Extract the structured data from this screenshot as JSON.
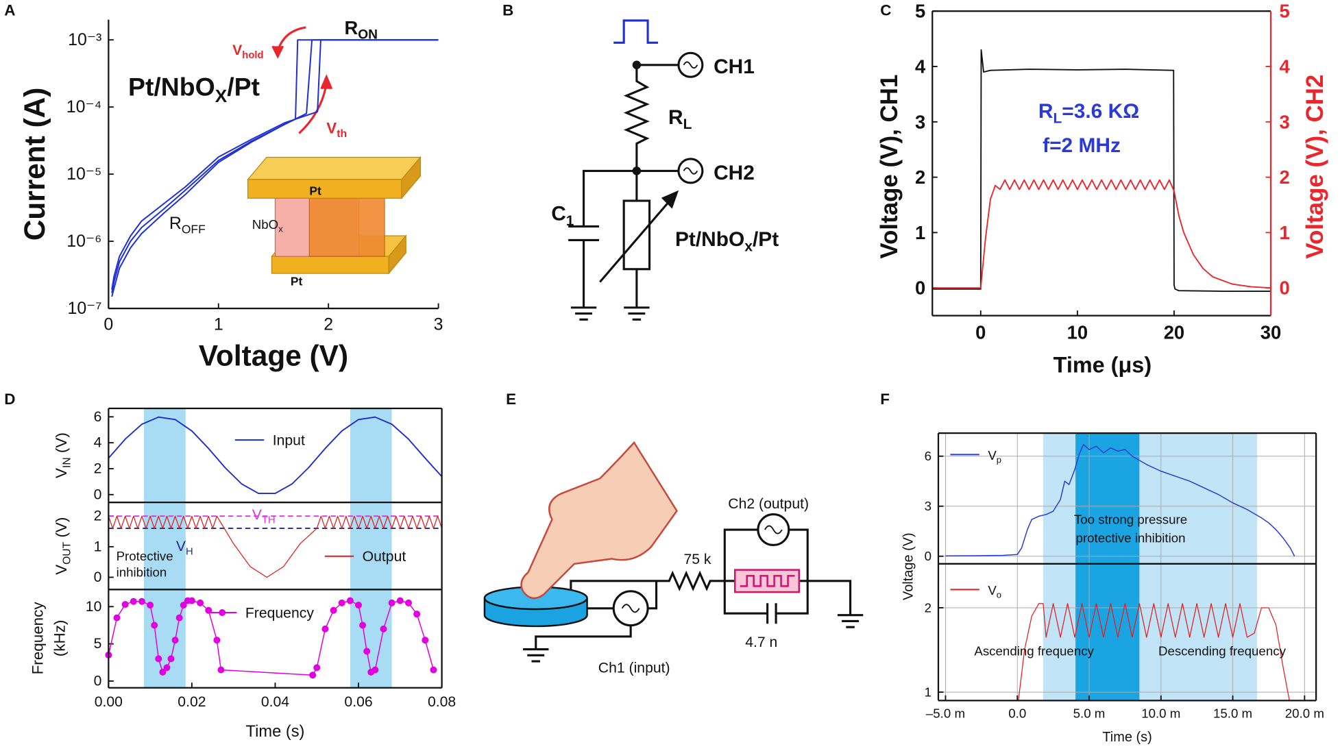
{
  "panel_labels": [
    "A",
    "B",
    "C",
    "D",
    "E",
    "F"
  ],
  "chart_data": [
    {
      "type": "line",
      "log_y": true,
      "xlabel": "Voltage (V)",
      "ylabel": "Current (A)",
      "xlim": [
        0,
        3
      ],
      "xticks": [
        0,
        1,
        2,
        3
      ],
      "ylim": [
        1e-07,
        0.002
      ],
      "yticks": [
        {
          "value": 1e-07,
          "label": "10⁻⁷"
        },
        {
          "value": 1e-06,
          "label": "10⁻⁶"
        },
        {
          "value": 1e-05,
          "label": "10⁻⁵"
        },
        {
          "value": 0.0001,
          "label": "10⁻⁴"
        },
        {
          "value": 0.001,
          "label": "10⁻³"
        }
      ],
      "series": [
        {
          "color": "#1f2fd6",
          "x": [
            0.03,
            0.05,
            0.1,
            0.2,
            0.3,
            0.5,
            0.7,
            1.0,
            1.3,
            1.6,
            1.7,
            1.72,
            3.0
          ],
          "values": [
            1.5e-07,
            2e-07,
            4e-07,
            8e-07,
            1.3e-06,
            2.6e-06,
            5e-06,
            1.5e-05,
            3e-05,
            5.5e-05,
            6.6e-05,
            0.001,
            0.001
          ]
        },
        {
          "color": "#1f2fd6",
          "x": [
            0.03,
            0.05,
            0.1,
            0.2,
            0.3,
            0.5,
            0.7,
            1.0,
            1.3,
            1.6,
            1.8,
            1.85,
            3.0
          ],
          "values": [
            1.7e-07,
            2.5e-07,
            5e-07,
            1e-06,
            1.6e-06,
            3e-06,
            5.8e-06,
            1.6e-05,
            3.1e-05,
            5.5e-05,
            8e-05,
            0.001,
            0.001
          ]
        },
        {
          "color": "#1f2fd6",
          "x": [
            0.03,
            0.05,
            0.1,
            0.2,
            0.3,
            0.5,
            0.7,
            1.0,
            1.3,
            1.6,
            1.9,
            1.93,
            3.0
          ],
          "values": [
            1.9e-07,
            3e-07,
            6e-07,
            1.2e-06,
            2e-06,
            3.6e-06,
            6.5e-06,
            1.8e-05,
            3.3e-05,
            5.8e-05,
            8.5e-05,
            0.001,
            0.001
          ]
        }
      ],
      "annotations": [
        {
          "text": "R",
          "sub": "ON"
        },
        {
          "text": "V",
          "sub": "hold"
        },
        {
          "text": "V",
          "sub": "th"
        },
        {
          "text": "Pt/NbO",
          "sub": "X",
          "after": "/Pt"
        },
        {
          "text": "R",
          "sub": "OFF"
        },
        {
          "text": "NbO",
          "sub": "x"
        },
        "Pt",
        "Pt"
      ]
    },
    {
      "type": "line",
      "xlabel": "Time (μs)",
      "ylabel": "Voltage (V), CH1",
      "y2label": "Voltage (V), CH2",
      "xlim": [
        -5,
        30
      ],
      "xticks": [
        0,
        10,
        20,
        30
      ],
      "ylim": [
        -0.5,
        5
      ],
      "yticks": [
        0,
        1,
        2,
        3,
        4,
        5
      ],
      "y2lim": [
        -0.5,
        5
      ],
      "y2ticks": [
        0,
        1,
        2,
        3,
        4,
        5
      ],
      "series": [
        {
          "color": "#111111",
          "x": [
            -5,
            0,
            0.05,
            0.3,
            1,
            5,
            10,
            15,
            19.95,
            20,
            20.1,
            20.5,
            25,
            30
          ],
          "values": [
            -0.02,
            -0.02,
            4.3,
            3.9,
            3.93,
            3.95,
            3.94,
            3.95,
            3.93,
            0.05,
            -0.02,
            -0.05,
            -0.06,
            -0.06
          ]
        },
        {
          "color": "#e8262b",
          "axis": "y2",
          "x": [
            -5,
            0,
            0.5,
            1,
            1.5,
            2,
            2.5,
            3,
            3.5,
            4,
            4.5,
            5,
            5.5,
            6,
            6.5,
            7,
            7.5,
            8,
            8.5,
            9,
            9.5,
            10,
            10.5,
            11,
            11.5,
            12,
            12.5,
            13,
            13.5,
            14,
            14.5,
            15,
            15.5,
            16,
            16.5,
            17,
            17.5,
            18,
            18.5,
            19,
            19.5,
            20,
            20.5,
            21,
            22,
            23,
            24,
            26,
            28,
            30
          ],
          "values": [
            0,
            0,
            0.9,
            1.6,
            1.85,
            1.78,
            1.95,
            1.78,
            1.95,
            1.78,
            1.95,
            1.78,
            1.95,
            1.78,
            1.95,
            1.78,
            1.95,
            1.78,
            1.95,
            1.78,
            1.95,
            1.78,
            1.95,
            1.78,
            1.95,
            1.78,
            1.95,
            1.78,
            1.95,
            1.78,
            1.95,
            1.78,
            1.95,
            1.78,
            1.95,
            1.78,
            1.95,
            1.78,
            1.95,
            1.78,
            1.95,
            1.75,
            1.3,
            1.0,
            0.6,
            0.35,
            0.2,
            0.07,
            0.02,
            0
          ]
        }
      ],
      "annotations": [
        {
          "text": "R",
          "sub": "L",
          "after": "=3.6 KΩ"
        },
        "f=2 MHz"
      ]
    },
    {
      "type": "line",
      "ylabel": {
        "text": "V",
        "sub": "IN",
        "after": " (V)"
      },
      "xlim": [
        0,
        0.08
      ],
      "ylim": [
        -0.6,
        6.65
      ],
      "yticks": [
        0,
        2,
        4,
        6
      ],
      "shaded_regions": [
        [
          0.0085,
          0.0185
        ],
        [
          0.058,
          0.068
        ]
      ],
      "shade_colors": [
        "#a8dcf5",
        "#a8dcf5"
      ],
      "series": [
        {
          "name": "Input",
          "color": "#1a2bd0",
          "x": [
            0,
            0.004,
            0.008,
            0.012,
            0.016,
            0.02,
            0.024,
            0.028,
            0.032,
            0.036,
            0.04,
            0.044,
            0.048,
            0.052,
            0.056,
            0.06,
            0.064,
            0.068,
            0.072,
            0.076,
            0.08
          ],
          "values": [
            2.81,
            4.28,
            5.43,
            5.98,
            5.79,
            4.91,
            3.56,
            2.07,
            0.81,
            0.09,
            0.09,
            0.81,
            2.07,
            3.56,
            4.91,
            5.79,
            5.98,
            5.43,
            4.28,
            2.81,
            1.39
          ]
        }
      ]
    },
    {
      "type": "line",
      "ylabel": {
        "text": "V",
        "sub": "OUT",
        "after": " (V)"
      },
      "xlim": [
        0,
        0.08
      ],
      "ylim": [
        -0.4,
        2.45
      ],
      "yticks": [
        0,
        1,
        2
      ],
      "shaded_regions": [
        [
          0.0085,
          0.0185
        ],
        [
          0.058,
          0.068
        ]
      ],
      "shade_colors": [
        "#a8dcf5",
        "#a8dcf5"
      ],
      "reference_lines": [
        {
          "value": 2.0,
          "color": "#e030e0",
          "label": {
            "text": "V",
            "sub": "TH"
          }
        },
        {
          "value": 1.6,
          "color": "#1a2b8c",
          "label": {
            "text": "V",
            "sub": "H"
          }
        }
      ],
      "series": [
        {
          "name": "Output",
          "color": "#e31b1b",
          "x": [
            0,
            0.001,
            0.002,
            0.003,
            0.004,
            0.005,
            0.006,
            0.007,
            0.008,
            0.009,
            0.01,
            0.011,
            0.012,
            0.013,
            0.014,
            0.015,
            0.016,
            0.017,
            0.018,
            0.019,
            0.02,
            0.021,
            0.022,
            0.023,
            0.024,
            0.025,
            0.026,
            0.03,
            0.034,
            0.038,
            0.042,
            0.046,
            0.05,
            0.051,
            0.052,
            0.053,
            0.054,
            0.055,
            0.056,
            0.057,
            0.058,
            0.059,
            0.06,
            0.061,
            0.062,
            0.063,
            0.064,
            0.065,
            0.066,
            0.067,
            0.068,
            0.069,
            0.07,
            0.071,
            0.072,
            0.073,
            0.074,
            0.075,
            0.076,
            0.077,
            0.078,
            0.079,
            0.08
          ],
          "values": [
            2.0,
            1.6,
            2.0,
            1.6,
            2.0,
            1.6,
            2.0,
            1.6,
            2.0,
            1.6,
            2.0,
            1.6,
            2.0,
            1.6,
            2.0,
            1.6,
            2.0,
            1.6,
            2.0,
            1.6,
            2.0,
            1.6,
            2.0,
            1.6,
            2.0,
            1.6,
            2.0,
            1.1,
            0.35,
            0,
            0.35,
            1.1,
            1.6,
            2.0,
            1.6,
            2.0,
            1.6,
            2.0,
            1.6,
            2.0,
            1.6,
            2.0,
            1.6,
            2.0,
            1.6,
            2.0,
            1.6,
            2.0,
            1.6,
            2.0,
            1.6,
            2.0,
            1.6,
            2.0,
            1.6,
            2.0,
            1.6,
            2.0,
            1.6,
            2.0,
            1.6,
            2.0,
            1.6
          ]
        }
      ],
      "annotations": [
        "Protective",
        "inhibition"
      ]
    },
    {
      "type": "line",
      "ylabel": [
        "Frequency",
        "(kHz)"
      ],
      "xlabel": "Time (s)",
      "xlim": [
        0,
        0.08
      ],
      "ylim": [
        -0.9,
        12.3
      ],
      "yticks": [
        0,
        5,
        10
      ],
      "xticks": [
        {
          "value": 0,
          "label": "0.00"
        },
        {
          "value": 0.02,
          "label": "0.02"
        },
        {
          "value": 0.04,
          "label": "0.04"
        },
        {
          "value": 0.06,
          "label": "0.06"
        },
        {
          "value": 0.08,
          "label": "0.08"
        }
      ],
      "shaded_regions": [
        [
          0.0085,
          0.0185
        ],
        [
          0.058,
          0.068
        ]
      ],
      "shade_colors": [
        "#a8dcf5",
        "#a8dcf5"
      ],
      "series": [
        {
          "name": "Frequency",
          "color": "#e000e0",
          "markers": true,
          "x": [
            0,
            0.002,
            0.004,
            0.006,
            0.008,
            0.01,
            0.011,
            0.012,
            0.013,
            0.014,
            0.015,
            0.016,
            0.017,
            0.018,
            0.019,
            0.02,
            0.022,
            0.024,
            0.026,
            0.027,
            0.049,
            0.05,
            0.052,
            0.054,
            0.056,
            0.058,
            0.06,
            0.061,
            0.062,
            0.063,
            0.064,
            0.066,
            0.068,
            0.07,
            0.072,
            0.074,
            0.076,
            0.078
          ],
          "values": [
            3.5,
            8.5,
            10.3,
            10.7,
            10.7,
            10.2,
            7.5,
            3,
            1.2,
            1.8,
            3,
            5.5,
            8.5,
            10.2,
            10.8,
            10.8,
            10.5,
            9.5,
            5.5,
            1.5,
            0.8,
            1.8,
            7,
            9.5,
            10.5,
            10.8,
            10.2,
            7.5,
            4,
            1.2,
            1.5,
            7,
            10.5,
            10.8,
            10.5,
            9,
            5.5,
            1.5
          ]
        }
      ]
    },
    {
      "type": "line",
      "grid": true,
      "ylabel": "Voltage (V)",
      "xlim": [
        -5.5,
        20.8
      ],
      "ylim": [
        -0.46,
        7.38
      ],
      "yticks": [
        0,
        3,
        6
      ],
      "shaded_regions": [
        [
          1.8,
          16.7
        ],
        [
          4.05,
          8.5
        ]
      ],
      "shade_colors": [
        "#c2e4f7",
        "#1ba4e2"
      ],
      "series": [
        {
          "name": {
            "text": "V",
            "sub": "p"
          },
          "color": "#2a3cd0",
          "x": [
            -5,
            -3,
            -1,
            0,
            0.3,
            0.7,
            1,
            1.5,
            2,
            2.5,
            3,
            3.3,
            3.6,
            4,
            4.3,
            4.6,
            5,
            5.5,
            6,
            6.5,
            7,
            7.5,
            8,
            9,
            10,
            11,
            12,
            13,
            14,
            15,
            16,
            17,
            17.5,
            18,
            18.5,
            19,
            19.3
          ],
          "values": [
            0.02,
            0.03,
            0.05,
            0.1,
            0.5,
            1.6,
            2.2,
            2.4,
            2.5,
            2.7,
            3.4,
            4.5,
            4.3,
            5.2,
            6.1,
            6.7,
            6.4,
            6.6,
            6.2,
            6.5,
            6.3,
            6.4,
            6.0,
            5.5,
            5.1,
            4.8,
            4.5,
            4.1,
            3.7,
            3.2,
            2.8,
            2.3,
            2.0,
            1.6,
            1.1,
            0.5,
            0
          ]
        }
      ],
      "annotations": [
        "Too strong pressure",
        "protective inhibition"
      ]
    },
    {
      "type": "line",
      "grid": true,
      "xlabel": "Time (s)",
      "xlim": [
        -5.5,
        20.8
      ],
      "ylim": [
        0.9,
        2.52
      ],
      "yticks": [
        1,
        2
      ],
      "xticks": [
        {
          "value": -5,
          "label": "–5.0 m"
        },
        {
          "value": 0,
          "label": "0.0"
        },
        {
          "value": 5,
          "label": "5.0 m"
        },
        {
          "value": 10,
          "label": "10.0 m"
        },
        {
          "value": 15,
          "label": "15.0 m"
        },
        {
          "value": 20,
          "label": "20.0 m"
        }
      ],
      "shaded_regions": [
        [
          1.8,
          16.7
        ],
        [
          4.05,
          8.5
        ]
      ],
      "shade_colors": [
        "#c2e4f7",
        "#1ba4e2"
      ],
      "series": [
        {
          "name": {
            "text": "V",
            "sub": "o"
          },
          "color": "#e41e1e",
          "x": [
            0,
            0.5,
            1,
            1.5,
            1.8,
            2,
            2.5,
            3,
            3.5,
            4,
            4.5,
            5,
            5.5,
            6,
            6.5,
            7,
            7.5,
            8,
            8.5,
            9,
            9.5,
            10,
            10.5,
            11,
            11.5,
            12,
            12.5,
            13,
            13.5,
            14,
            14.5,
            15,
            15.5,
            16,
            16.5,
            17,
            17.5,
            18,
            18.5,
            19
          ],
          "values": [
            0.8,
            1.5,
            1.9,
            2.05,
            2.05,
            1.65,
            2.05,
            1.65,
            2.05,
            1.65,
            2.05,
            1.65,
            2.05,
            1.65,
            2.05,
            1.65,
            2.05,
            1.65,
            2.05,
            1.65,
            2.05,
            1.65,
            2.05,
            1.65,
            2.05,
            1.65,
            2.05,
            1.65,
            2.05,
            1.65,
            2.05,
            1.65,
            2.05,
            1.65,
            1.7,
            2.0,
            2.0,
            1.8,
            1.3,
            0.85
          ]
        }
      ],
      "annotations": [
        "Ascending frequency",
        "Descending frequency"
      ]
    }
  ],
  "diagram_b": {
    "labels": [
      "CH1",
      "CH2",
      {
        "text": "R",
        "sub": "L"
      },
      {
        "text": "C",
        "sub": "1"
      },
      {
        "text": "Pt/NbO",
        "sub": "x",
        "after": "/Pt"
      }
    ]
  },
  "diagram_e": {
    "labels": [
      "Ch2 (output)",
      "75 k",
      "4.7 n",
      "Ch1 (input)"
    ]
  }
}
